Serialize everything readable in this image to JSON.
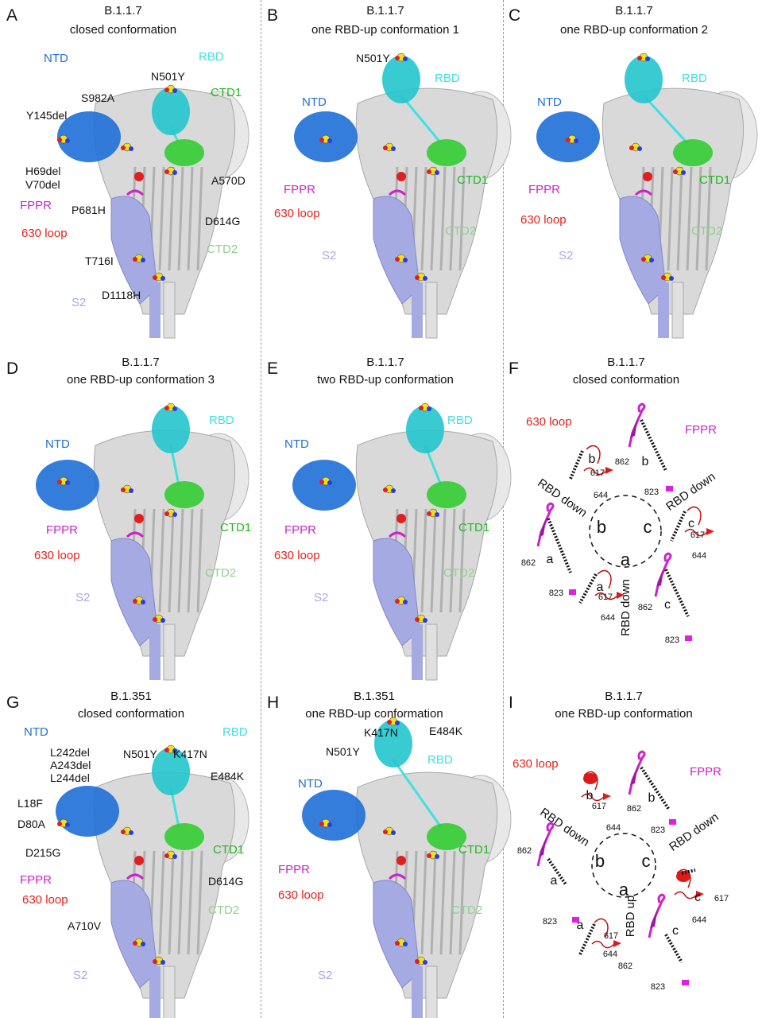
{
  "colors": {
    "ntd": "#1f6fd6",
    "rbd": "#3fe0e0",
    "ctd1": "#22b822",
    "ctd2": "#90cf90",
    "fppr": "#cc22cc",
    "loop630": "#e8201a",
    "s2": "#a6aae2"
  },
  "panels": {
    "A": {
      "letter": "A",
      "variant": "B.1.1.7",
      "conformation": "closed conformation",
      "labels": {
        "ntd": "NTD",
        "rbd": "RBD",
        "ctd1": "CTD1",
        "ctd2": "CTD2",
        "fppr": "FPPR",
        "loop": "630 loop",
        "s2": "S2"
      },
      "mutations": [
        "N501Y",
        "S982A",
        "Y145del",
        "H69del",
        "V70del",
        "A570D",
        "P681H",
        "D614G",
        "T716I",
        "D1118H"
      ]
    },
    "B": {
      "letter": "B",
      "variant": "B.1.1.7",
      "conformation": "one RBD-up conformation 1",
      "labels": {
        "ntd": "NTD",
        "rbd": "RBD",
        "ctd1": "CTD1",
        "ctd2": "CTD2",
        "fppr": "FPPR",
        "loop": "630 loop",
        "s2": "S2"
      },
      "mutations": [
        "N501Y"
      ]
    },
    "C": {
      "letter": "C",
      "variant": "B.1.1.7",
      "conformation": "one RBD-up conformation 2",
      "labels": {
        "ntd": "NTD",
        "rbd": "RBD",
        "ctd1": "CTD1",
        "ctd2": "CTD2",
        "fppr": "FPPR",
        "loop": "630 loop",
        "s2": "S2"
      }
    },
    "D": {
      "letter": "D",
      "variant": "B.1.1.7",
      "conformation": "one RBD-up conformation 3",
      "labels": {
        "ntd": "NTD",
        "rbd": "RBD",
        "ctd1": "CTD1",
        "ctd2": "CTD2",
        "fppr": "FPPR",
        "loop": "630 loop",
        "s2": "S2"
      }
    },
    "E": {
      "letter": "E",
      "variant": "B.1.1.7",
      "conformation": "two RBD-up conformation",
      "labels": {
        "ntd": "NTD",
        "rbd": "RBD",
        "ctd1": "CTD1",
        "ctd2": "CTD2",
        "fppr": "FPPR",
        "loop": "630 loop",
        "s2": "S2"
      }
    },
    "F": {
      "letter": "F",
      "variant": "B.1.1.7",
      "conformation": "closed conformation",
      "labels": {
        "fppr": "FPPR",
        "loop": "630 loop"
      },
      "protomers": [
        "a",
        "b",
        "c"
      ],
      "rbd_states": [
        "RBD down",
        "RBD down",
        "RBD down"
      ],
      "residues": [
        "617",
        "644",
        "862",
        "823"
      ]
    },
    "G": {
      "letter": "G",
      "variant": "B.1.351",
      "conformation": "closed conformation",
      "labels": {
        "ntd": "NTD",
        "rbd": "RBD",
        "ctd1": "CTD1",
        "ctd2": "CTD2",
        "fppr": "FPPR",
        "loop": "630 loop",
        "s2": "S2"
      },
      "mutations": [
        "L242del",
        "A243del",
        "L244del",
        "N501Y",
        "K417N",
        "E484K",
        "L18F",
        "D80A",
        "D215G",
        "D614G",
        "A710V"
      ]
    },
    "H": {
      "letter": "H",
      "variant": "B.1.351",
      "conformation": "one RBD-up conformation",
      "labels": {
        "ntd": "NTD",
        "rbd": "RBD",
        "ctd1": "CTD1",
        "ctd2": "CTD2",
        "fppr": "FPPR",
        "loop": "630 loop",
        "s2": "S2"
      },
      "mutations": [
        "K417N",
        "E484K",
        "N501Y"
      ]
    },
    "I": {
      "letter": "I",
      "variant": "B.1.1.7",
      "conformation": "one RBD-up conformation",
      "labels": {
        "fppr": "FPPR",
        "loop": "630 loop"
      },
      "protomers": [
        "a",
        "b",
        "c"
      ],
      "rbd_states": [
        "RBD up",
        "RBD down",
        "RBD down"
      ],
      "residues": [
        "617",
        "644",
        "862",
        "823"
      ]
    }
  }
}
